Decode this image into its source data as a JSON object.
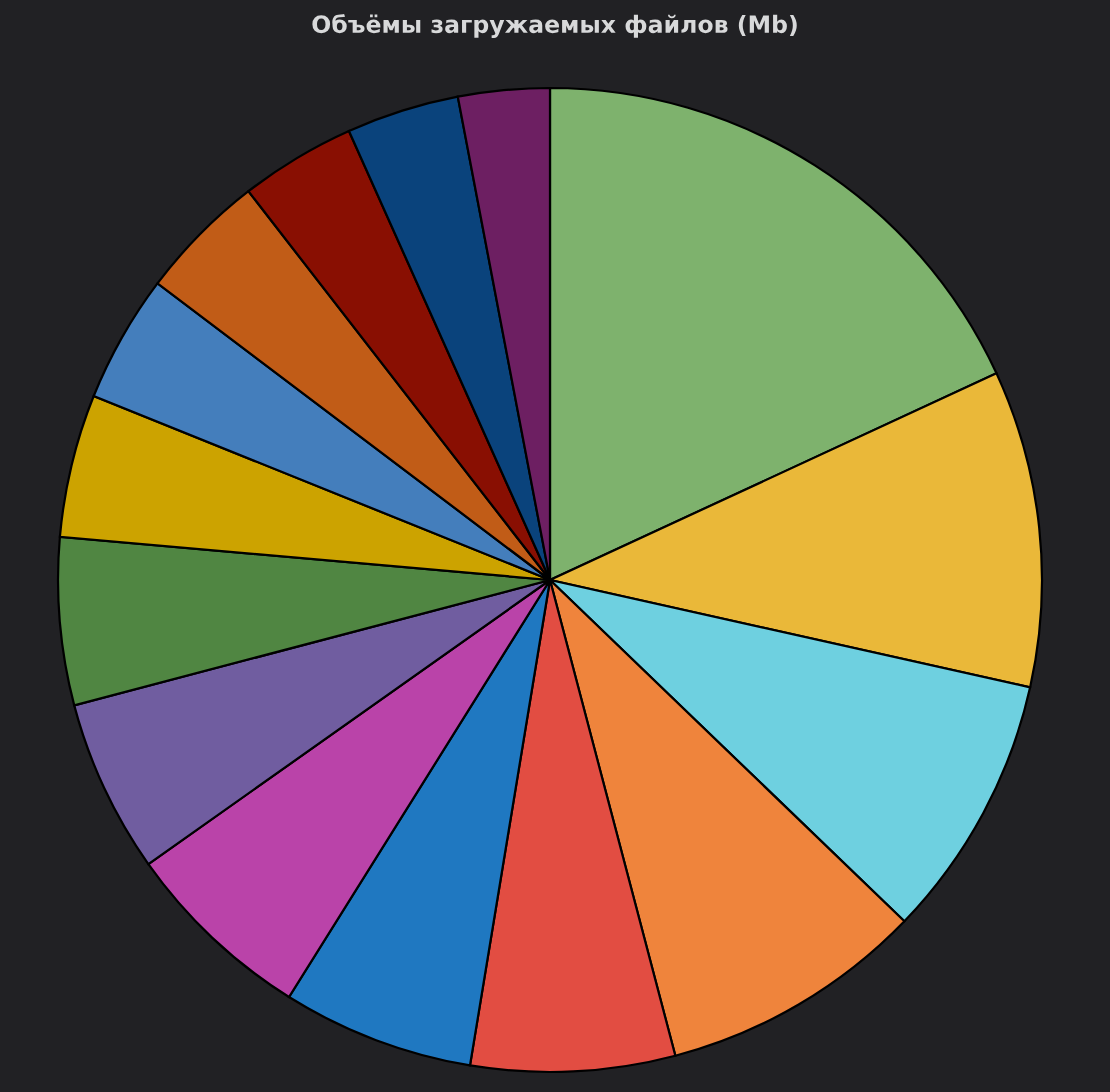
{
  "chart_data": {
    "type": "pie",
    "title": "Объёмы загружаемых файлов (Mb)",
    "categories": [
      null,
      null,
      null,
      null,
      null,
      null,
      null,
      null,
      null,
      null,
      null,
      null,
      null,
      null,
      null
    ],
    "values": [
      18.1,
      10.4,
      8.7,
      8.7,
      6.7,
      6.3,
      6.3,
      5.7,
      5.5,
      4.7,
      4.2,
      4.2,
      3.8,
      3.7,
      3.0
    ],
    "colors": [
      "#7eb26d",
      "#eab839",
      "#6ed0e0",
      "#ef843c",
      "#e24d42",
      "#1f78c1",
      "#ba43a9",
      "#705da0",
      "#508642",
      "#cca300",
      "#447ebc",
      "#c15c17",
      "#890f02",
      "#0a437c",
      "#6d1f62"
    ],
    "legend": false
  }
}
